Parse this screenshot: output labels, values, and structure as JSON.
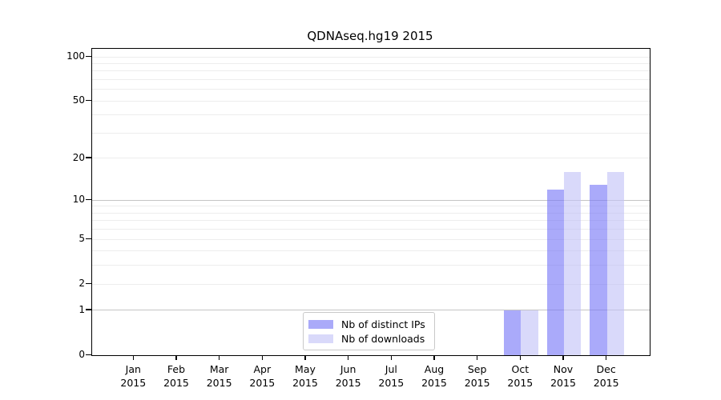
{
  "title": "QDNAseq.hg19 2015",
  "chart_data": {
    "type": "bar",
    "title": "QDNAseq.hg19 2015",
    "xlabel": "",
    "ylabel": "",
    "categories": [
      "Jan",
      "Feb",
      "Mar",
      "Apr",
      "May",
      "Jun",
      "Jul",
      "Aug",
      "Sep",
      "Oct",
      "Nov",
      "Dec"
    ],
    "category_year": "2015",
    "series": [
      {
        "name": "Nb of distinct IPs",
        "color": "#aaaaf9",
        "color_rgba": "rgba(118,118,247,0.62)",
        "values": [
          0,
          0,
          0,
          0,
          0,
          0,
          0,
          0,
          0,
          1,
          12,
          13
        ]
      },
      {
        "name": "Nb of downloads",
        "color": "#d9d9fa",
        "color_rgba": "rgba(194,194,247,0.62)",
        "values": [
          0,
          0,
          0,
          0,
          0,
          0,
          0,
          0,
          0,
          1,
          16,
          16
        ]
      }
    ],
    "yscale": "log1p",
    "ylim": [
      0,
      113
    ],
    "yticks": [
      0,
      1,
      2,
      5,
      10,
      20,
      50,
      100
    ],
    "grid": {
      "major": [
        1,
        10
      ],
      "minor": [
        2,
        3,
        4,
        5,
        6,
        7,
        8,
        9,
        20,
        30,
        40,
        50,
        60,
        70,
        80,
        90,
        100
      ]
    },
    "grid_on": true,
    "legend_position": "bottom-center",
    "colors": {
      "major_grid": "#c4c4c4",
      "minor_grid": "#ededed",
      "axis": "#000000",
      "background": "#ffffff"
    }
  }
}
